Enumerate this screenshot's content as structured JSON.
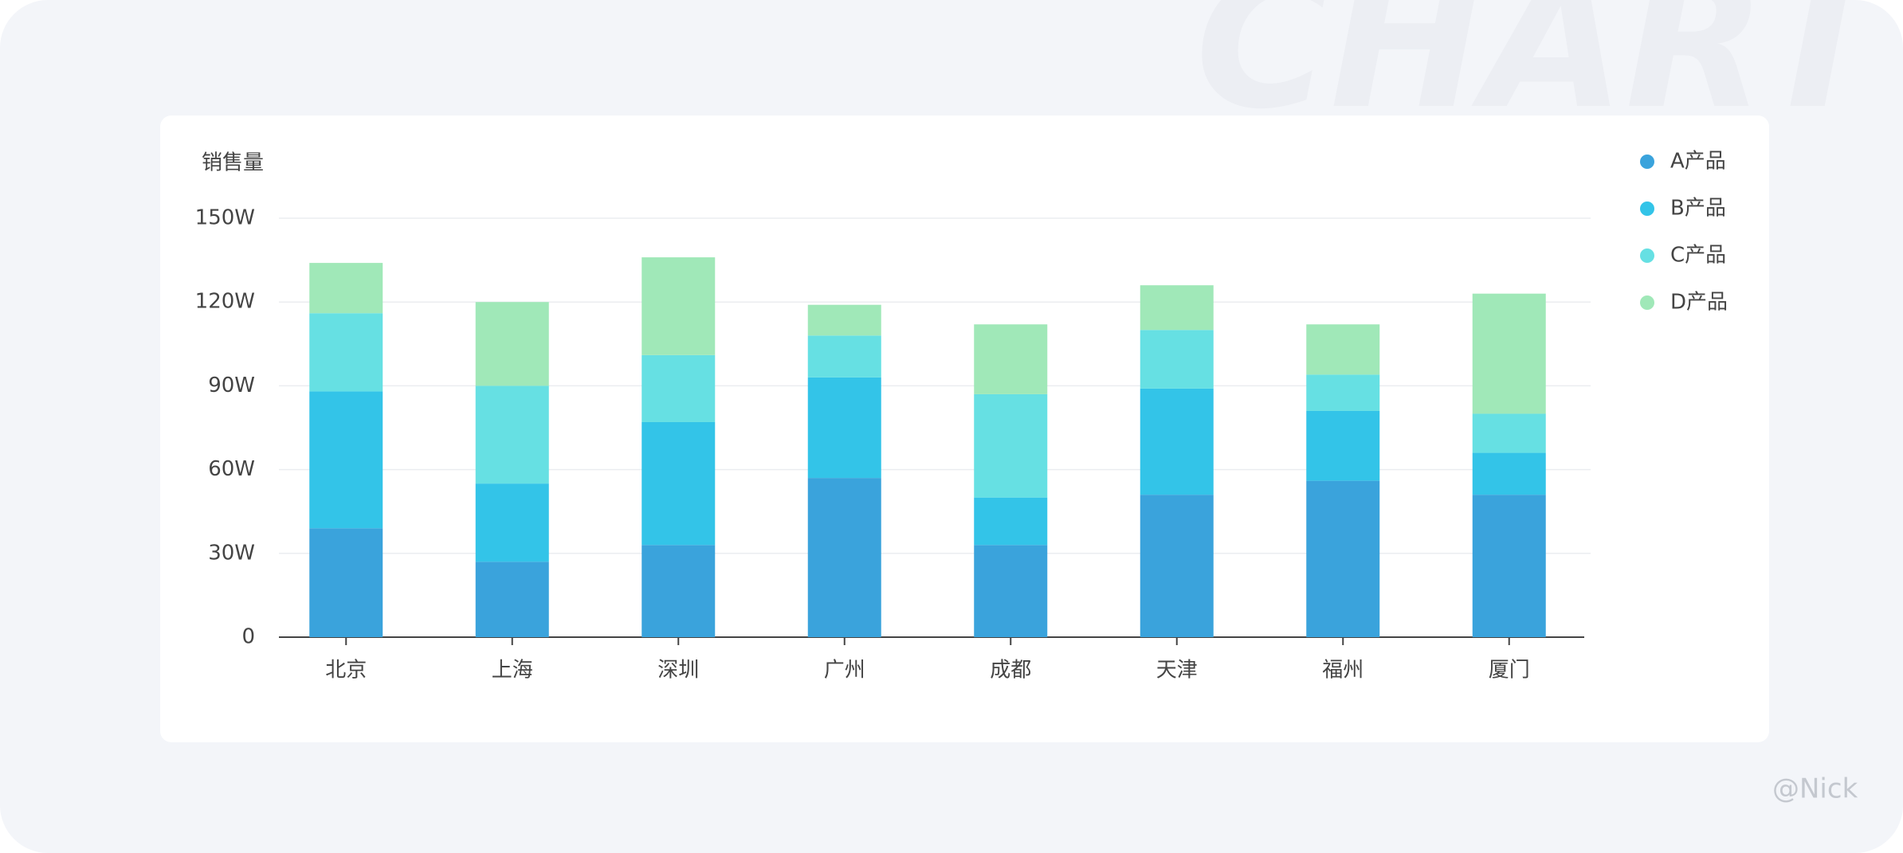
{
  "chart_data": {
    "type": "stacked-bar",
    "y_label": "销售量",
    "categories": [
      "北京",
      "上海",
      "深圳",
      "广州",
      "成都",
      "天津",
      "福州",
      "厦门"
    ],
    "series": [
      {
        "name": "A产品",
        "color": "#3aa3dc",
        "values": [
          39,
          27,
          33,
          57,
          33,
          51,
          56,
          51
        ]
      },
      {
        "name": "B产品",
        "color": "#33c4e8",
        "values": [
          49,
          28,
          44,
          36,
          17,
          38,
          25,
          15
        ]
      },
      {
        "name": "C产品",
        "color": "#66e0e3",
        "values": [
          28,
          35,
          24,
          15,
          37,
          21,
          13,
          14
        ]
      },
      {
        "name": "D产品",
        "color": "#a0e8b8",
        "values": [
          18,
          30,
          35,
          11,
          25,
          16,
          18,
          43
        ]
      }
    ],
    "ylim": [
      0,
      150
    ],
    "yticks": [
      0,
      {
        "value": 30,
        "label": "30W"
      },
      {
        "value": 60,
        "label": "60W"
      },
      {
        "value": 90,
        "label": "90W"
      },
      {
        "value": 120,
        "label": "120W"
      },
      {
        "value": 150,
        "label": "150W"
      }
    ],
    "grid": true,
    "legend": "right"
  },
  "background_text": "CHART",
  "watermark": "@Nick"
}
